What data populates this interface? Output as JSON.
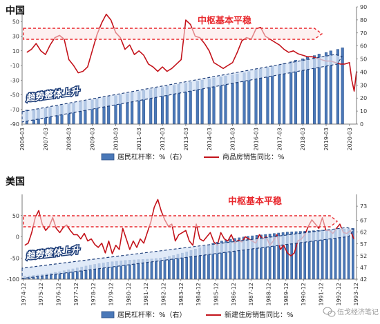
{
  "colors": {
    "line": "#c3121a",
    "bar_fill": "#4a78b8",
    "bar_edge": "#2b4f87",
    "arrow_red": "#e8262b",
    "arrow_blue": "#1f3f7a"
  },
  "chart_data": [
    {
      "type": "bar+line",
      "title": "中国",
      "legend": [
        {
          "label": "居民杠杆率：%（右）",
          "kind": "bar",
          "axis": "right"
        },
        {
          "label": "商品房销售同比：%",
          "kind": "line",
          "axis": "left"
        }
      ],
      "legend_position": "bottom",
      "x_tick_labels": [
        "2006-03",
        "2007-03",
        "2008-03",
        "2009-03",
        "2010-03",
        "2011-03",
        "2012-03",
        "2013-03",
        "2014-03",
        "2015-03",
        "2016-03",
        "2017-03",
        "2018-03",
        "2019-03",
        "2020-03"
      ],
      "left_axis": {
        "ylim": [
          -90,
          70
        ],
        "ticks": [
          50,
          30,
          10,
          -10,
          -30,
          -50,
          -70,
          -90
        ]
      },
      "right_axis": {
        "ylim": [
          0,
          90
        ],
        "ticks": [
          90,
          80,
          70,
          60,
          50,
          40,
          30,
          20,
          10,
          0
        ]
      },
      "bars": {
        "name": "居民杠杆率：%（右）",
        "x": [
          2006.2,
          2006.5,
          2006.7,
          2007.0,
          2007.2,
          2007.5,
          2007.7,
          2008.0,
          2008.2,
          2008.5,
          2008.7,
          2009.0,
          2009.2,
          2009.5,
          2009.7,
          2010.0,
          2010.2,
          2010.5,
          2010.7,
          2011.0,
          2011.2,
          2011.5,
          2011.7,
          2012.0,
          2012.2,
          2012.5,
          2012.7,
          2013.0,
          2013.2,
          2013.5,
          2013.7,
          2014.0,
          2014.2,
          2014.5,
          2014.7,
          2015.0,
          2015.2,
          2015.5,
          2015.7,
          2016.0,
          2016.2,
          2016.5,
          2016.7,
          2017.0,
          2017.2,
          2017.5,
          2017.7,
          2018.0,
          2018.2,
          2018.5,
          2018.7,
          2019.0,
          2019.2,
          2019.5,
          2019.7
        ],
        "values": [
          10.8,
          11.2,
          11.5,
          12.0,
          12.8,
          13.6,
          14.4,
          15.4,
          16.2,
          17.0,
          17.8,
          18.6,
          19.4,
          20.2,
          21.0,
          21.8,
          22.6,
          23.4,
          24.2,
          25.0,
          25.8,
          26.6,
          27.4,
          28.2,
          29.0,
          29.8,
          30.6,
          31.4,
          32.2,
          33.0,
          33.8,
          34.6,
          35.4,
          36.2,
          37.0,
          37.8,
          38.6,
          39.4,
          40.4,
          41.4,
          42.4,
          43.4,
          44.4,
          45.4,
          46.6,
          47.8,
          49.0,
          50.2,
          51.4,
          52.6,
          53.8,
          55.0,
          56.2,
          57.4,
          58.6
        ]
      },
      "line": {
        "name": "商品房销售同比：%",
        "x": [
          2006.2,
          2006.4,
          2006.6,
          2006.8,
          2007.0,
          2007.2,
          2007.4,
          2007.6,
          2007.8,
          2008.0,
          2008.2,
          2008.4,
          2008.6,
          2008.8,
          2009.0,
          2009.2,
          2009.4,
          2009.6,
          2009.8,
          2010.0,
          2010.2,
          2010.4,
          2010.6,
          2010.8,
          2011.0,
          2011.2,
          2011.4,
          2011.6,
          2011.8,
          2012.0,
          2012.2,
          2012.4,
          2012.6,
          2012.8,
          2013.0,
          2013.2,
          2013.4,
          2013.6,
          2013.8,
          2014.0,
          2014.2,
          2014.4,
          2014.6,
          2014.8,
          2015.0,
          2015.2,
          2015.4,
          2015.6,
          2015.8,
          2016.0,
          2016.2,
          2016.4,
          2016.6,
          2016.8,
          2017.0,
          2017.2,
          2017.4,
          2017.6,
          2017.8,
          2018.0,
          2018.2,
          2018.4,
          2018.6,
          2018.8,
          2019.0,
          2019.2,
          2019.4,
          2019.6,
          2019.8,
          2020.0,
          2020.1,
          2020.2,
          2020.3
        ],
        "values": [
          8,
          12,
          20,
          10,
          5,
          18,
          28,
          31,
          26,
          -2,
          -10,
          -20,
          -18,
          -12,
          10,
          32,
          48,
          60,
          52,
          35,
          28,
          12,
          18,
          5,
          10,
          4,
          -8,
          -12,
          -18,
          -12,
          -18,
          -14,
          -8,
          -2,
          52,
          46,
          30,
          28,
          20,
          10,
          -6,
          -10,
          -14,
          -10,
          -6,
          8,
          24,
          28,
          26,
          40,
          42,
          30,
          26,
          22,
          18,
          12,
          8,
          10,
          6,
          4,
          2,
          2,
          0,
          -2,
          -4,
          -4,
          -6,
          -8,
          -8,
          -6,
          -30,
          -45,
          -18
        ]
      }
    },
    {
      "type": "bar+line",
      "title": "美国",
      "legend": [
        {
          "label": "居民杠杆率：%（右）",
          "kind": "bar",
          "axis": "right"
        },
        {
          "label": "新建住房销售同比：%",
          "kind": "line",
          "axis": "left"
        }
      ],
      "legend_position": "bottom",
      "x_tick_labels": [
        "1974-12",
        "1975-12",
        "1976-12",
        "1977-12",
        "1978-12",
        "1979-12",
        "1980-12",
        "1981-12",
        "1982-12",
        "1983-12",
        "1984-12",
        "1985-12",
        "1986-12",
        "1987-12",
        "1988-12",
        "1989-12",
        "1990-12",
        "1991-12",
        "1992-12",
        "1993-12"
      ],
      "left_axis": {
        "ylim": [
          -100,
          100
        ],
        "ticks": [
          50,
          0,
          -50,
          -100
        ]
      },
      "right_axis": {
        "ylim": [
          42,
          78
        ],
        "ticks": [
          73,
          67,
          62,
          57,
          52,
          47,
          42
        ]
      },
      "bars": {
        "name": "居民杠杆率：%（右）",
        "x": [
          1975.0,
          1975.25,
          1975.5,
          1975.75,
          1976.0,
          1976.25,
          1976.5,
          1976.75,
          1977.0,
          1977.25,
          1977.5,
          1977.75,
          1978.0,
          1978.25,
          1978.5,
          1978.75,
          1979.0,
          1979.25,
          1979.5,
          1979.75,
          1980.0,
          1980.25,
          1980.5,
          1980.75,
          1981.0,
          1981.25,
          1981.5,
          1981.75,
          1982.0,
          1982.25,
          1982.5,
          1982.75,
          1983.0,
          1983.25,
          1983.5,
          1983.75,
          1984.0,
          1984.25,
          1984.5,
          1984.75,
          1985.0,
          1985.25,
          1985.5,
          1985.75,
          1986.0,
          1986.25,
          1986.5,
          1986.75,
          1987.0,
          1987.25,
          1987.5,
          1987.75,
          1988.0,
          1988.25,
          1988.5,
          1988.75,
          1989.0,
          1989.25,
          1989.5,
          1989.75,
          1990.0,
          1990.25,
          1990.5,
          1990.75,
          1991.0,
          1991.25,
          1991.5,
          1991.75,
          1992.0,
          1992.25,
          1992.5,
          1992.75,
          1993.0,
          1993.25,
          1993.5,
          1993.75
        ],
        "values": [
          43.2,
          43.4,
          43.6,
          43.8,
          44.0,
          44.3,
          44.6,
          44.9,
          45.2,
          45.6,
          46.0,
          46.4,
          46.8,
          47.2,
          47.6,
          48.0,
          48.3,
          48.6,
          48.9,
          49.2,
          49.4,
          49.6,
          49.8,
          50.0,
          50.1,
          50.2,
          50.3,
          50.4,
          50.5,
          50.6,
          50.8,
          51.0,
          51.3,
          51.7,
          52.1,
          52.6,
          53.1,
          53.6,
          54.2,
          54.8,
          55.4,
          56.0,
          56.6,
          57.2,
          57.7,
          58.2,
          58.6,
          59.0,
          59.3,
          59.6,
          59.9,
          60.2,
          60.4,
          60.6,
          60.8,
          61.0,
          61.2,
          61.4,
          61.6,
          61.8,
          62.0,
          62.1,
          62.2,
          62.3,
          62.4,
          62.5,
          62.6,
          62.7,
          62.8,
          62.9,
          63.0,
          63.1,
          63.2,
          63.3,
          63.4,
          63.6
        ]
      },
      "line": {
        "name": "新建住房销售同比：%",
        "x": [
          1975.0,
          1975.2,
          1975.4,
          1975.6,
          1975.8,
          1976.0,
          1976.2,
          1976.4,
          1976.6,
          1976.8,
          1977.0,
          1977.2,
          1977.4,
          1977.6,
          1977.8,
          1978.0,
          1978.2,
          1978.4,
          1978.6,
          1978.8,
          1979.0,
          1979.2,
          1979.4,
          1979.6,
          1979.8,
          1980.0,
          1980.2,
          1980.4,
          1980.6,
          1980.8,
          1981.0,
          1981.2,
          1981.4,
          1981.6,
          1981.8,
          1982.0,
          1982.2,
          1982.4,
          1982.6,
          1982.8,
          1983.0,
          1983.2,
          1983.4,
          1983.6,
          1983.8,
          1984.0,
          1984.2,
          1984.4,
          1984.6,
          1984.8,
          1985.0,
          1985.2,
          1985.4,
          1985.6,
          1985.8,
          1986.0,
          1986.2,
          1986.4,
          1986.6,
          1986.8,
          1987.0,
          1987.2,
          1987.4,
          1987.6,
          1987.8,
          1988.0,
          1988.2,
          1988.4,
          1988.6,
          1988.8,
          1989.0,
          1989.2,
          1989.4,
          1989.6,
          1989.8,
          1990.0,
          1990.2,
          1990.4,
          1990.6,
          1990.8,
          1991.0,
          1991.2,
          1991.4,
          1991.6,
          1991.8,
          1992.0,
          1992.2,
          1992.4,
          1992.6,
          1992.8,
          1993.0,
          1993.2,
          1993.4,
          1993.6,
          1993.8
        ],
        "values": [
          -20,
          -15,
          10,
          45,
          62,
          30,
          15,
          25,
          45,
          20,
          10,
          22,
          28,
          15,
          5,
          5,
          -5,
          8,
          -10,
          -5,
          -18,
          -25,
          -15,
          -38,
          -10,
          -40,
          -20,
          -30,
          20,
          -5,
          -30,
          -10,
          -25,
          -5,
          -15,
          10,
          35,
          70,
          88,
          60,
          40,
          25,
          30,
          -10,
          5,
          10,
          15,
          -10,
          -20,
          30,
          -5,
          -10,
          0,
          10,
          -12,
          -20,
          10,
          -5,
          -10,
          5,
          -15,
          -8,
          -12,
          0,
          -5,
          -10,
          -15,
          5,
          -5,
          0,
          -20,
          -10,
          5,
          -30,
          -20,
          -38,
          -45,
          -38,
          -10,
          -5,
          5,
          25,
          40,
          30,
          20,
          45,
          15,
          15,
          8,
          20,
          30,
          10,
          8,
          15,
          -5
        ]
      }
    }
  ],
  "panels": [
    {
      "title": "中国",
      "annotations": {
        "red": "中枢基本平稳",
        "blue": "趋势整体上升"
      },
      "legend": {
        "bar": "居民杠杆率：%（右）",
        "line": "商品房销售同比：%"
      }
    },
    {
      "title": "美国",
      "annotations": {
        "red": "中枢基本平稳",
        "blue": "趋势整体上升"
      },
      "legend": {
        "bar": "居民杠杆率：%（右）",
        "line": "新建住房销售同比：%"
      }
    }
  ],
  "watermark": {
    "text": "伍戈经济笔记",
    "icon": "wechat-icon"
  }
}
